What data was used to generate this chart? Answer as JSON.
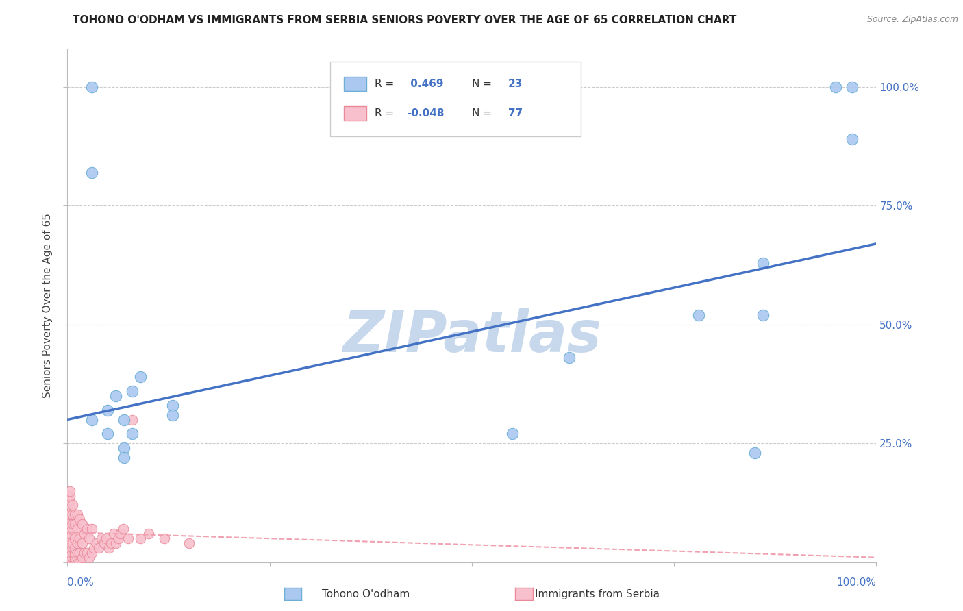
{
  "title": "TOHONO O'ODHAM VS IMMIGRANTS FROM SERBIA SENIORS POVERTY OVER THE AGE OF 65 CORRELATION CHART",
  "source": "Source: ZipAtlas.com",
  "ylabel": "Seniors Poverty Over the Age of 65",
  "xlim": [
    0.0,
    1.0
  ],
  "ylim": [
    0.0,
    1.08
  ],
  "blue_scatter_x": [
    0.03,
    0.03,
    0.03,
    0.05,
    0.06,
    0.07,
    0.07,
    0.08,
    0.08,
    0.09,
    0.13,
    0.13,
    0.55,
    0.62,
    0.78,
    0.85,
    0.86,
    0.86,
    0.95,
    0.97,
    0.97,
    0.05,
    0.07
  ],
  "blue_scatter_y": [
    1.0,
    0.3,
    0.82,
    0.32,
    0.35,
    0.3,
    0.24,
    0.36,
    0.27,
    0.39,
    0.33,
    0.31,
    0.27,
    0.43,
    0.52,
    0.23,
    0.63,
    0.52,
    1.0,
    0.89,
    1.0,
    0.27,
    0.22
  ],
  "pink_scatter_x": [
    0.003,
    0.003,
    0.003,
    0.003,
    0.003,
    0.003,
    0.003,
    0.003,
    0.003,
    0.003,
    0.003,
    0.003,
    0.003,
    0.003,
    0.003,
    0.003,
    0.003,
    0.003,
    0.003,
    0.003,
    0.006,
    0.006,
    0.006,
    0.006,
    0.006,
    0.006,
    0.006,
    0.006,
    0.006,
    0.006,
    0.009,
    0.009,
    0.009,
    0.009,
    0.009,
    0.009,
    0.009,
    0.012,
    0.012,
    0.012,
    0.012,
    0.012,
    0.012,
    0.015,
    0.015,
    0.015,
    0.015,
    0.018,
    0.018,
    0.018,
    0.021,
    0.021,
    0.024,
    0.024,
    0.027,
    0.027,
    0.03,
    0.03,
    0.033,
    0.036,
    0.039,
    0.042,
    0.045,
    0.048,
    0.051,
    0.054,
    0.057,
    0.06,
    0.063,
    0.066,
    0.069,
    0.075,
    0.08,
    0.09,
    0.1,
    0.12,
    0.15
  ],
  "pink_scatter_y": [
    0.0,
    0.0,
    0.01,
    0.01,
    0.02,
    0.02,
    0.03,
    0.03,
    0.04,
    0.05,
    0.05,
    0.06,
    0.07,
    0.08,
    0.09,
    0.1,
    0.12,
    0.13,
    0.14,
    0.15,
    0.0,
    0.0,
    0.01,
    0.02,
    0.03,
    0.04,
    0.07,
    0.08,
    0.1,
    0.12,
    0.0,
    0.01,
    0.02,
    0.03,
    0.05,
    0.08,
    0.1,
    0.0,
    0.01,
    0.02,
    0.04,
    0.07,
    0.1,
    0.0,
    0.02,
    0.05,
    0.09,
    0.01,
    0.04,
    0.08,
    0.02,
    0.06,
    0.02,
    0.07,
    0.01,
    0.05,
    0.02,
    0.07,
    0.03,
    0.04,
    0.03,
    0.05,
    0.04,
    0.05,
    0.03,
    0.04,
    0.06,
    0.04,
    0.05,
    0.06,
    0.07,
    0.05,
    0.3,
    0.05,
    0.06,
    0.05,
    0.04
  ],
  "blue_line_x": [
    0.0,
    1.0
  ],
  "blue_line_y": [
    0.3,
    0.67
  ],
  "pink_line_x": [
    0.0,
    1.0
  ],
  "pink_line_y": [
    0.063,
    0.01
  ],
  "grid_color": "#cccccc",
  "blue_line_color": "#4472c4",
  "blue_scatter_fill": "#aac8f0",
  "blue_scatter_edge": "#6baed6",
  "pink_line_color": "#f0a0b0",
  "pink_scatter_fill": "#f8c0cc",
  "pink_scatter_edge": "#e88898",
  "background_color": "#ffffff",
  "title_fontsize": 11,
  "ylabel_fontsize": 11,
  "tick_fontsize": 11,
  "right_tick_color": "#4472c4",
  "watermark": "ZIPatlas",
  "watermark_color": "#c8d8ec",
  "watermark_fontsize": 60,
  "source_text": "Source: ZipAtlas.com",
  "legend_R1": " 0.469",
  "legend_N1": "23",
  "legend_R2": "-0.048",
  "legend_N2": "77",
  "legend_label1": "Tohono O'odham",
  "legend_label2": "Immigrants from Serbia"
}
